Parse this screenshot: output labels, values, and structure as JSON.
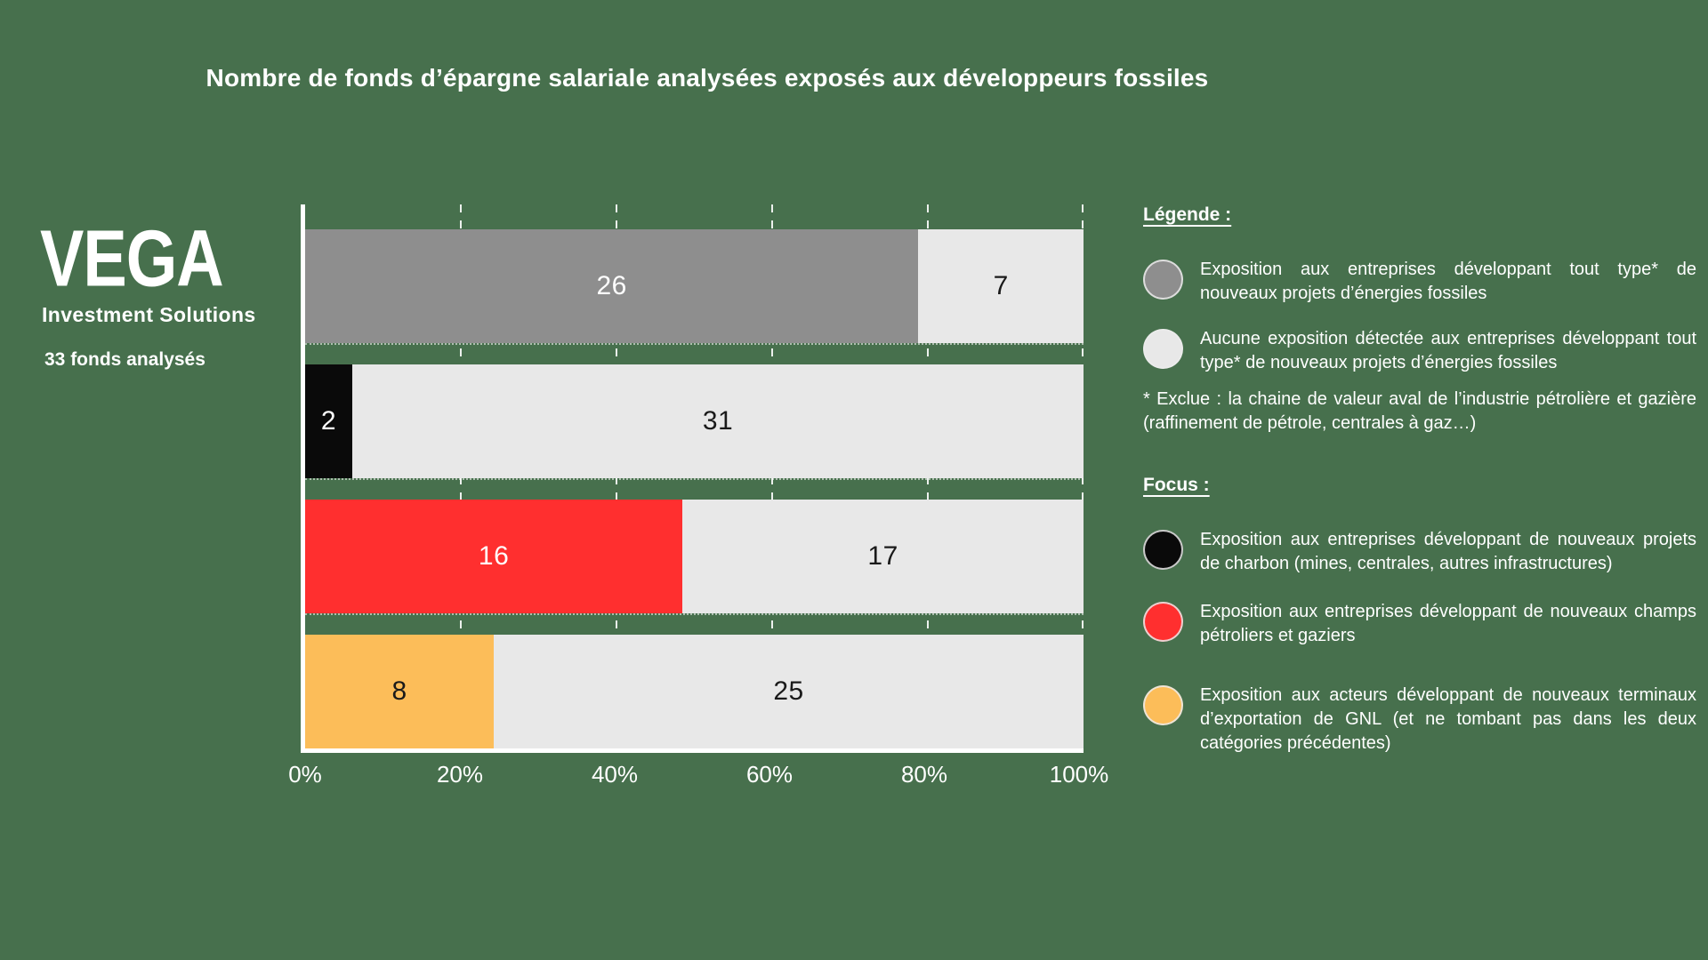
{
  "background_color": "#47704D",
  "title": "Nombre de fonds d’épargne salariale analysées exposés aux développeurs fossiles",
  "logo": {
    "brand": "VEGA",
    "subtitle": "Investment Solutions",
    "caption": "33 fonds analysés"
  },
  "chart_data": {
    "type": "bar",
    "orientation": "horizontal",
    "stacked": true,
    "total_per_bar": 33,
    "x_axis": {
      "ticks": [
        "0%",
        "20%",
        "40%",
        "60%",
        "80%",
        "100%"
      ],
      "range_percent": [
        0,
        100
      ],
      "gridlines": "dashed-white-every-20pct"
    },
    "remainder_color": "#E8E8E8",
    "remainder_text_color": "#1A1A1A",
    "bars": [
      {
        "id": "tout-type",
        "category": "Exposition aux entreprises développant tout type* de nouveaux projets d’énergies fossiles",
        "exposed": 26,
        "remainder": 7,
        "color": "#8E8E8E",
        "value_text_color": "#FFFFFF"
      },
      {
        "id": "charbon",
        "category": "Exposition aux entreprises développant de nouveaux projets de charbon",
        "exposed": 2,
        "remainder": 31,
        "color": "#0A0A0A",
        "value_text_color": "#FFFFFF"
      },
      {
        "id": "petrole-gaz",
        "category": "Exposition aux entreprises développant de nouveaux champs pétroliers et gaziers",
        "exposed": 16,
        "remainder": 17,
        "color": "#FF2F2F",
        "value_text_color": "#FFFFFF"
      },
      {
        "id": "gnl",
        "category": "Exposition aux acteurs développant de nouveaux terminaux d’exportation de GNL",
        "exposed": 8,
        "remainder": 25,
        "color": "#FCBD59",
        "value_text_color": "#1A1A1A"
      }
    ]
  },
  "legend": {
    "heading": "Légende :",
    "items": [
      {
        "id": "expo-tout-type",
        "color": "#8E8E8E",
        "text": "Exposition aux entreprises développant tout type* de nouveaux projets d’énergies fossiles"
      },
      {
        "id": "aucune-expo",
        "color": "#E8E8E8",
        "text": "Aucune exposition détectée aux entreprises développant tout type* de nouveaux projets d’énergies fossiles"
      }
    ],
    "footnote": "* Exclue : la chaine de valeur aval de l’industrie pétrolière et gazière (raffinement de pétrole, centrales à gaz…)"
  },
  "focus": {
    "heading": "Focus :",
    "items": [
      {
        "id": "focus-charbon",
        "color": "#0A0A0A",
        "text": "Exposition aux entreprises développant de nouveaux projets de charbon (mines, centrales, autres infrastructures)"
      },
      {
        "id": "focus-petrole",
        "color": "#FF2F2F",
        "text": "Exposition aux entreprises développant de nouveaux champs pétroliers et gaziers"
      },
      {
        "id": "focus-gnl",
        "color": "#FCBD59",
        "text": "Exposition aux acteurs développant de nouveaux terminaux d’exportation de GNL (et ne tombant pas dans les deux catégories précédentes)"
      }
    ]
  }
}
